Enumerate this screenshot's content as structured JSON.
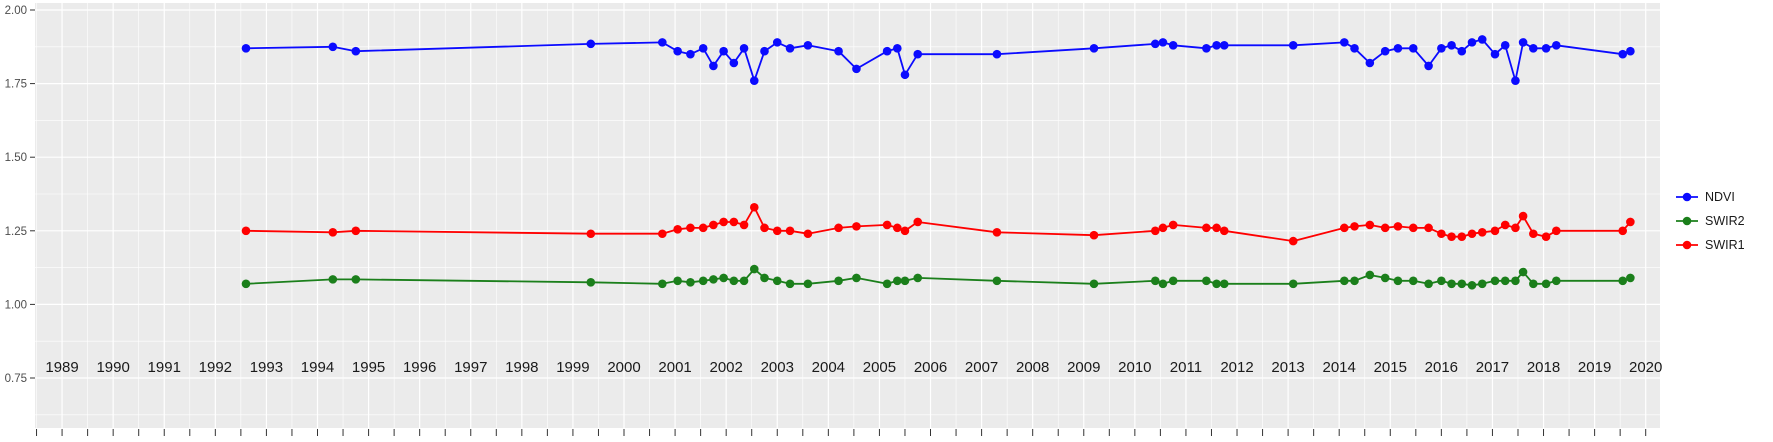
{
  "chart_data": {
    "type": "line",
    "title": "",
    "xlabel": "",
    "ylabel": "",
    "grid": "major+minor",
    "legend_position": "right",
    "panel_color": "#EBEBEB",
    "grid_color": "#FFFFFF",
    "tick_color": "#333333",
    "y_label_color": "#4D4D4D",
    "x_label_color": "#1A1A1A",
    "x_range": [
      1988.47,
      2020.28
    ],
    "y_range": [
      0.75,
      2.0
    ],
    "x_ticks": [
      1989,
      1990,
      1991,
      1992,
      1993,
      1994,
      1995,
      1996,
      1997,
      1998,
      1999,
      2000,
      2001,
      2002,
      2003,
      2004,
      2005,
      2006,
      2007,
      2008,
      2009,
      2010,
      2011,
      2012,
      2013,
      2014,
      2015,
      2016,
      2017,
      2018,
      2019,
      2020
    ],
    "y_ticks": [
      0.75,
      1.0,
      1.25,
      1.5,
      1.75,
      2.0
    ],
    "y_tick_labels": [
      "0.75",
      "1.00",
      "1.25",
      "1.50",
      "1.75",
      "2.00"
    ],
    "x": [
      1992.6,
      1994.3,
      1994.75,
      1999.35,
      2000.75,
      2001.05,
      2001.3,
      2001.55,
      2001.75,
      2001.95,
      2002.15,
      2002.35,
      2002.55,
      2002.75,
      2003.0,
      2003.25,
      2003.6,
      2004.2,
      2004.55,
      2005.15,
      2005.35,
      2005.5,
      2005.75,
      2007.3,
      2009.2,
      2010.4,
      2010.55,
      2010.75,
      2011.4,
      2011.6,
      2011.75,
      2013.1,
      2014.1,
      2014.3,
      2014.6,
      2014.9,
      2015.15,
      2015.45,
      2015.75,
      2016.0,
      2016.2,
      2016.4,
      2016.6,
      2016.8,
      2017.05,
      2017.25,
      2017.45,
      2017.6,
      2017.8,
      2018.05,
      2018.25,
      2019.55,
      2019.7
    ],
    "series": [
      {
        "name": "NDVI",
        "color": "#0B0BFF",
        "values": [
          1.87,
          1.875,
          1.86,
          1.885,
          1.89,
          1.86,
          1.85,
          1.87,
          1.81,
          1.86,
          1.82,
          1.87,
          1.76,
          1.86,
          1.89,
          1.87,
          1.88,
          1.86,
          1.8,
          1.86,
          1.87,
          1.78,
          1.85,
          1.85,
          1.87,
          1.885,
          1.89,
          1.88,
          1.87,
          1.88,
          1.88,
          1.88,
          1.89,
          1.87,
          1.82,
          1.86,
          1.87,
          1.87,
          1.81,
          1.87,
          1.88,
          1.86,
          1.89,
          1.9,
          1.85,
          1.88,
          1.76,
          1.89,
          1.87,
          1.87,
          1.88,
          1.85,
          1.86
        ]
      },
      {
        "name": "SWIR2",
        "color": "#1B7F1B",
        "values": [
          1.07,
          1.085,
          1.085,
          1.075,
          1.07,
          1.08,
          1.075,
          1.08,
          1.085,
          1.09,
          1.08,
          1.08,
          1.12,
          1.09,
          1.08,
          1.07,
          1.07,
          1.08,
          1.09,
          1.07,
          1.08,
          1.08,
          1.09,
          1.08,
          1.07,
          1.08,
          1.07,
          1.08,
          1.08,
          1.07,
          1.07,
          1.07,
          1.08,
          1.08,
          1.1,
          1.09,
          1.08,
          1.08,
          1.07,
          1.08,
          1.07,
          1.07,
          1.065,
          1.07,
          1.08,
          1.08,
          1.08,
          1.11,
          1.07,
          1.07,
          1.08,
          1.08,
          1.09
        ]
      },
      {
        "name": "SWIR1",
        "color": "#FF0000",
        "values": [
          1.25,
          1.245,
          1.25,
          1.24,
          1.24,
          1.255,
          1.26,
          1.26,
          1.27,
          1.28,
          1.28,
          1.27,
          1.33,
          1.26,
          1.25,
          1.25,
          1.24,
          1.26,
          1.265,
          1.27,
          1.26,
          1.25,
          1.28,
          1.245,
          1.235,
          1.25,
          1.26,
          1.27,
          1.26,
          1.26,
          1.25,
          1.215,
          1.26,
          1.265,
          1.27,
          1.26,
          1.265,
          1.26,
          1.26,
          1.24,
          1.23,
          1.23,
          1.24,
          1.245,
          1.25,
          1.27,
          1.26,
          1.3,
          1.24,
          1.23,
          1.25,
          1.25,
          1.28
        ]
      }
    ],
    "legend_order": [
      "NDVI",
      "SWIR2",
      "SWIR1"
    ]
  }
}
